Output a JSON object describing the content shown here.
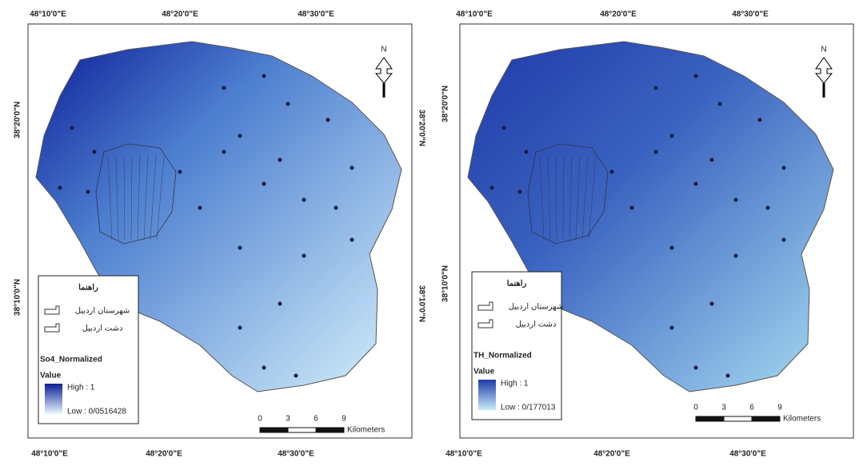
{
  "maps": [
    {
      "top_labels": [
        "48°10'0\"E",
        "48°20'0\"E",
        "48°30'0\"E"
      ],
      "bottom_labels": [
        "48°10'0\"E",
        "48°20'0\"E",
        "48°30'0\"E"
      ],
      "left_labels": [
        "38°20'0\"N",
        "38°10'0\"N"
      ],
      "right_labels": [
        "38°20'0\"N",
        "38°10'0\"N"
      ],
      "north": "N",
      "legend": {
        "title": "راهنما",
        "items": [
          "شهرستان اردبیل",
          "دشت اردبیل"
        ],
        "field": "So4_Normalized",
        "value": "Value",
        "high": "High : 1",
        "low": "Low : 0/0516428"
      },
      "scale": {
        "ticks": [
          0,
          3,
          6,
          9
        ],
        "unit": "Kilometers"
      }
    },
    {
      "top_labels": [
        "48°10'0\"E",
        "48°20'0\"E",
        "48°30'0\"E"
      ],
      "bottom_labels": [
        "48°10'0\"E",
        "48°20'0\"E",
        "48°30'0\"E"
      ],
      "left_labels": [
        "38°20'0\"N",
        "38°10'0\"N"
      ],
      "right_labels": [],
      "north": "N",
      "legend": {
        "title": "راهنما",
        "items": [
          "شهرستان اردبیل",
          "دشت اردبیل"
        ],
        "field": "TH_Normalized",
        "value": "Value",
        "high": "High : 1",
        "low": "Low : 0/177013"
      },
      "scale": {
        "ticks": [
          0,
          3,
          6,
          9
        ],
        "unit": "Kilometers"
      }
    }
  ]
}
